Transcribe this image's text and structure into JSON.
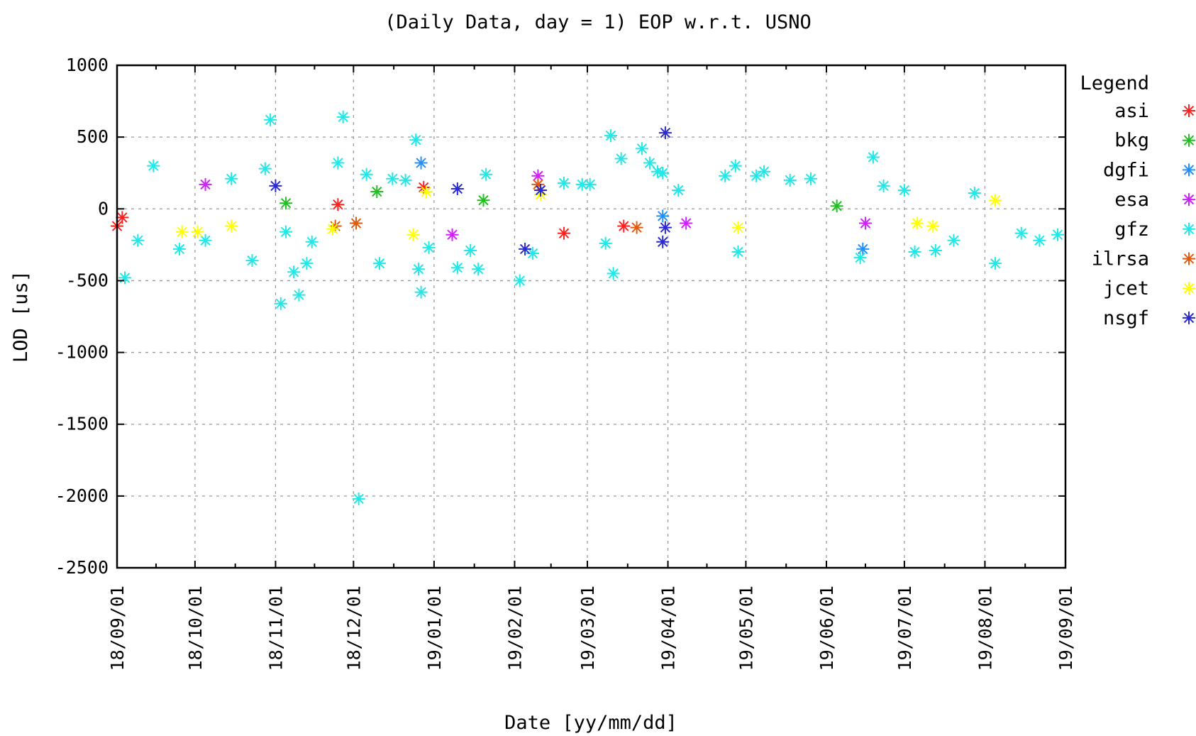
{
  "chart_data": {
    "type": "scatter",
    "title": "(Daily Data, day = 1) EOP w.r.t. USNO",
    "xlabel": "Date [yy/mm/dd]",
    "ylabel": "LOD [us]",
    "xlim": [
      "2018-09-01",
      "2019-09-01"
    ],
    "ylim": [
      -2500,
      1000
    ],
    "yticks": [
      1000,
      500,
      0,
      -500,
      -1000,
      -1500,
      -2000,
      -2500
    ],
    "ytick_labels": [
      "1000",
      "500",
      "0",
      "-500",
      "-1000",
      "-1500",
      "-2000",
      "-2500"
    ],
    "xticks": [
      "2018-09-01",
      "2018-10-01",
      "2018-11-01",
      "2018-12-01",
      "2019-01-01",
      "2019-02-01",
      "2019-03-01",
      "2019-04-01",
      "2019-05-01",
      "2019-06-01",
      "2019-07-01",
      "2019-08-01",
      "2019-09-01"
    ],
    "xtick_labels": [
      "18/09/01",
      "18/10/01",
      "18/11/01",
      "18/12/01",
      "19/01/01",
      "19/02/01",
      "19/03/01",
      "19/04/01",
      "19/05/01",
      "19/06/01",
      "19/07/01",
      "19/08/01",
      "19/09/01"
    ],
    "grid": true,
    "legend_title": "Legend",
    "legend_position": "right",
    "marker": "asterisk",
    "series": [
      {
        "name": "asi",
        "color": "#ff2020",
        "points": [
          [
            "2018-09-01",
            -120
          ],
          [
            "2018-09-03",
            -60
          ],
          [
            "2018-11-25",
            30
          ],
          [
            "2018-12-28",
            150
          ],
          [
            "2019-02-20",
            -170
          ],
          [
            "2019-03-15",
            -120
          ]
        ]
      },
      {
        "name": "bkg",
        "color": "#20c020",
        "points": [
          [
            "2018-11-05",
            40
          ],
          [
            "2018-12-10",
            120
          ],
          [
            "2019-01-20",
            60
          ],
          [
            "2019-06-05",
            20
          ]
        ]
      },
      {
        "name": "dgfi",
        "color": "#2090ff",
        "points": [
          [
            "2018-12-27",
            320
          ],
          [
            "2019-06-15",
            -280
          ],
          [
            "2019-03-30",
            -50
          ]
        ]
      },
      {
        "name": "esa",
        "color": "#d020ff",
        "points": [
          [
            "2018-10-05",
            170
          ],
          [
            "2019-01-08",
            -180
          ],
          [
            "2019-02-10",
            230
          ],
          [
            "2019-04-08",
            -100
          ],
          [
            "2019-06-16",
            -100
          ]
        ]
      },
      {
        "name": "gfz",
        "color": "#20e8e8",
        "points": [
          [
            "2018-09-04",
            -480
          ],
          [
            "2018-09-09",
            -220
          ],
          [
            "2018-09-15",
            300
          ],
          [
            "2018-09-25",
            -280
          ],
          [
            "2018-10-05",
            -220
          ],
          [
            "2018-10-15",
            210
          ],
          [
            "2018-10-23",
            -360
          ],
          [
            "2018-10-28",
            280
          ],
          [
            "2018-10-30",
            620
          ],
          [
            "2018-11-03",
            -660
          ],
          [
            "2018-11-05",
            -160
          ],
          [
            "2018-11-08",
            -440
          ],
          [
            "2018-11-10",
            -600
          ],
          [
            "2018-11-13",
            -380
          ],
          [
            "2018-11-15",
            -230
          ],
          [
            "2018-11-25",
            320
          ],
          [
            "2018-11-27",
            640
          ],
          [
            "2018-12-03",
            -2020
          ],
          [
            "2018-12-06",
            240
          ],
          [
            "2018-12-11",
            -380
          ],
          [
            "2018-12-16",
            210
          ],
          [
            "2018-12-21",
            200
          ],
          [
            "2018-12-25",
            480
          ],
          [
            "2018-12-26",
            -420
          ],
          [
            "2018-12-27",
            -580
          ],
          [
            "2018-12-30",
            -270
          ],
          [
            "2019-01-10",
            -410
          ],
          [
            "2019-01-15",
            -290
          ],
          [
            "2019-01-18",
            -420
          ],
          [
            "2019-01-21",
            240
          ],
          [
            "2019-02-03",
            -500
          ],
          [
            "2019-02-08",
            -310
          ],
          [
            "2019-02-20",
            180
          ],
          [
            "2019-02-27",
            170
          ],
          [
            "2019-03-02",
            170
          ],
          [
            "2019-03-08",
            -240
          ],
          [
            "2019-03-10",
            510
          ],
          [
            "2019-03-11",
            -450
          ],
          [
            "2019-03-14",
            350
          ],
          [
            "2019-03-22",
            420
          ],
          [
            "2019-03-25",
            320
          ],
          [
            "2019-03-28",
            260
          ],
          [
            "2019-03-30",
            250
          ],
          [
            "2019-04-05",
            130
          ],
          [
            "2019-04-23",
            230
          ],
          [
            "2019-04-27",
            300
          ],
          [
            "2019-04-28",
            -300
          ],
          [
            "2019-05-05",
            230
          ],
          [
            "2019-05-08",
            260
          ],
          [
            "2019-05-18",
            200
          ],
          [
            "2019-05-26",
            210
          ],
          [
            "2019-06-14",
            -340
          ],
          [
            "2019-06-19",
            360
          ],
          [
            "2019-06-23",
            160
          ],
          [
            "2019-07-01",
            130
          ],
          [
            "2019-07-05",
            -300
          ],
          [
            "2019-07-13",
            -290
          ],
          [
            "2019-07-20",
            -220
          ],
          [
            "2019-07-28",
            110
          ],
          [
            "2019-08-05",
            -380
          ],
          [
            "2019-08-15",
            -170
          ],
          [
            "2019-08-22",
            -220
          ],
          [
            "2019-08-29",
            -180
          ]
        ]
      },
      {
        "name": "ilrsa",
        "color": "#e05a10",
        "points": [
          [
            "2018-11-24",
            -120
          ],
          [
            "2018-12-02",
            -100
          ],
          [
            "2019-02-10",
            170
          ],
          [
            "2019-03-20",
            -130
          ]
        ]
      },
      {
        "name": "jcet",
        "color": "#ffff00",
        "points": [
          [
            "2018-09-26",
            -160
          ],
          [
            "2018-10-02",
            -160
          ],
          [
            "2018-10-15",
            -120
          ],
          [
            "2018-11-23",
            -140
          ],
          [
            "2018-12-24",
            -180
          ],
          [
            "2018-12-29",
            120
          ],
          [
            "2019-02-11",
            100
          ],
          [
            "2019-04-28",
            -130
          ],
          [
            "2019-07-06",
            -100
          ],
          [
            "2019-07-12",
            -120
          ],
          [
            "2019-08-05",
            60
          ]
        ]
      },
      {
        "name": "nsgf",
        "color": "#2a2ad0",
        "points": [
          [
            "2018-11-01",
            160
          ],
          [
            "2019-01-10",
            140
          ],
          [
            "2019-02-05",
            -280
          ],
          [
            "2019-02-11",
            130
          ],
          [
            "2019-03-31",
            530
          ],
          [
            "2019-03-30",
            -230
          ],
          [
            "2019-03-31",
            -130
          ]
        ]
      }
    ]
  }
}
